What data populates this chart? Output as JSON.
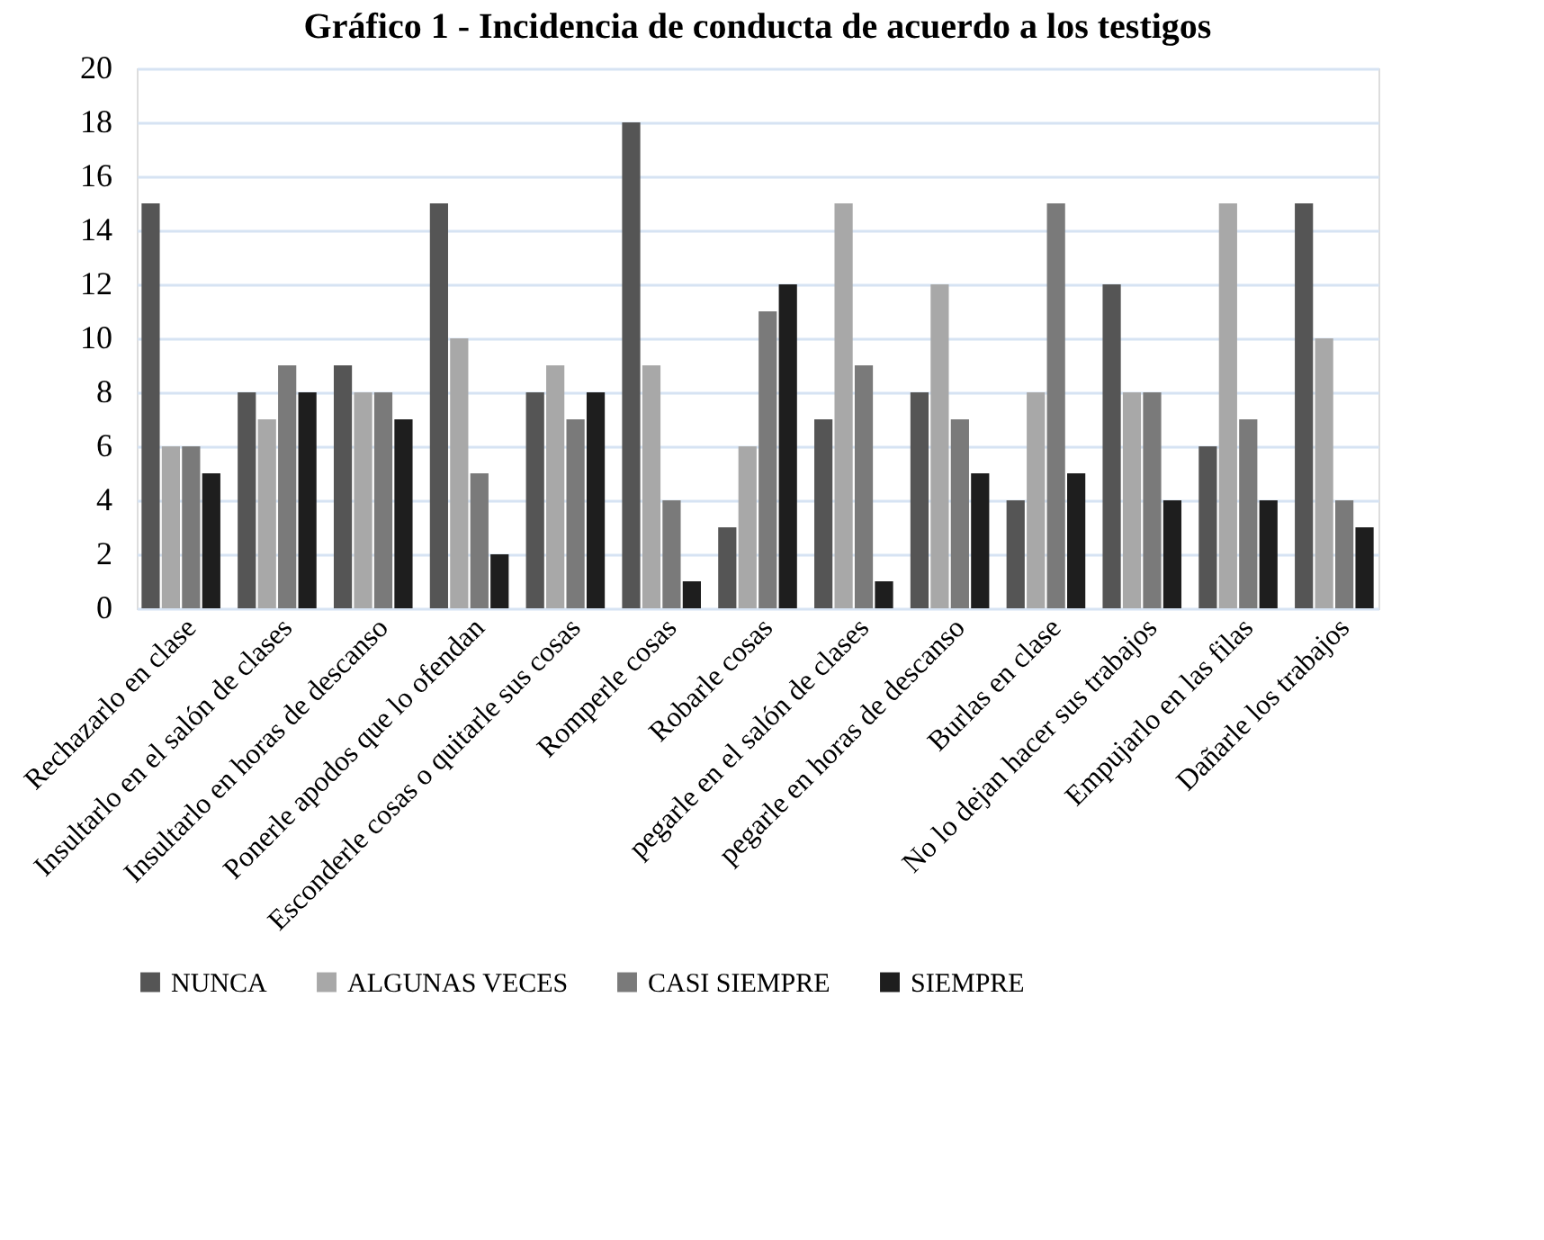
{
  "chart_data": {
    "type": "bar",
    "title": "Gráfico 1 - Incidencia de conducta de acuerdo a los testigos",
    "categories": [
      "Rechazarlo en clase",
      "Insultarlo en el salón de clases",
      "Insultarlo en horas de descanso",
      "Ponerle apodos que lo ofendan",
      "Esconderle cosas o quitarle sus cosas",
      "Romperle cosas",
      "Robarle cosas",
      "pegarle en el salón de clases",
      "pegarle en horas de descanso",
      "Burlas en clase",
      "No lo dejan hacer sus trabajos",
      "Empujarlo en las filas",
      "Dañarle los trabajos"
    ],
    "series": [
      {
        "name": "NUNCA",
        "color": "#555555",
        "values": [
          15,
          8,
          9,
          15,
          8,
          18,
          3,
          7,
          8,
          4,
          12,
          6,
          15
        ]
      },
      {
        "name": "ALGUNAS VECES",
        "color": "#a8a8a8",
        "values": [
          6,
          7,
          8,
          10,
          9,
          9,
          6,
          15,
          12,
          8,
          8,
          15,
          10
        ]
      },
      {
        "name": "CASI SIEMPRE",
        "color": "#7a7a7a",
        "values": [
          6,
          9,
          8,
          5,
          7,
          4,
          11,
          9,
          7,
          15,
          8,
          7,
          4
        ]
      },
      {
        "name": "SIEMPRE",
        "color": "#1e1e1e",
        "values": [
          5,
          8,
          7,
          2,
          8,
          1,
          12,
          1,
          5,
          5,
          4,
          4,
          3
        ]
      }
    ],
    "ylim": [
      0,
      20
    ],
    "yticks": [
      0,
      2,
      4,
      6,
      8,
      10,
      12,
      14,
      16,
      18,
      20
    ],
    "grid": "y",
    "legend": "bottom"
  }
}
